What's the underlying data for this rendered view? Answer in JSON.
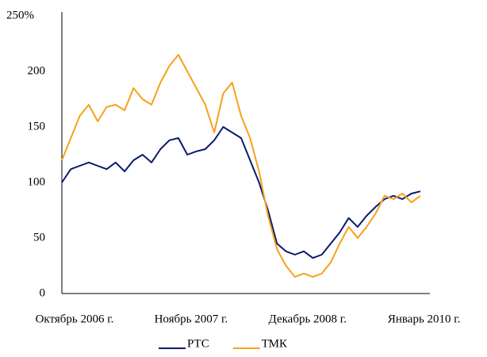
{
  "chart_data": {
    "type": "line",
    "categories": [
      "Октябрь 2006 г.",
      null,
      null,
      null,
      null,
      null,
      null,
      null,
      null,
      null,
      null,
      null,
      null,
      "Ноябрь 2007 г.",
      null,
      null,
      null,
      null,
      null,
      null,
      null,
      null,
      null,
      null,
      null,
      null,
      "Декабрь 2008 г.",
      null,
      null,
      null,
      null,
      null,
      null,
      null,
      null,
      null,
      null,
      null,
      null,
      "Январь 2010 г.",
      null
    ],
    "series": [
      {
        "name": "РТС",
        "color": "#0b1a6e",
        "values": [
          100,
          112,
          115,
          118,
          115,
          112,
          118,
          110,
          120,
          125,
          118,
          130,
          138,
          140,
          125,
          128,
          130,
          138,
          150,
          145,
          140,
          120,
          100,
          75,
          45,
          38,
          35,
          38,
          32,
          35,
          45,
          55,
          68,
          60,
          70,
          78,
          85,
          88,
          85,
          90,
          92
        ]
      },
      {
        "name": "ТМК",
        "color": "#f7a11a",
        "values": [
          120,
          140,
          160,
          170,
          155,
          168,
          170,
          165,
          185,
          175,
          170,
          190,
          205,
          215,
          200,
          185,
          170,
          145,
          180,
          190,
          160,
          140,
          110,
          70,
          40,
          25,
          15,
          18,
          15,
          18,
          28,
          45,
          60,
          50,
          60,
          72,
          88,
          85,
          90,
          82,
          88
        ]
      }
    ],
    "ylim": [
      0,
      250
    ],
    "yticks": [
      0,
      50,
      100,
      150,
      200,
      {
        "value": 250,
        "label": "250%"
      }
    ],
    "grid": false,
    "legend": "bottom"
  }
}
